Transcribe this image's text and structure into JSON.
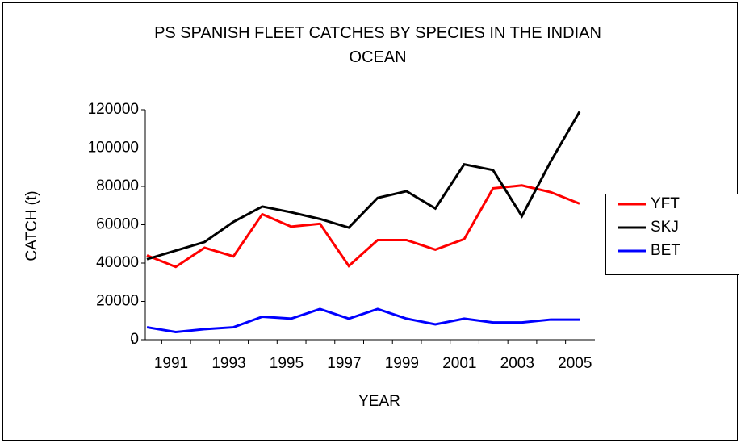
{
  "chart_data": {
    "type": "line",
    "title": "PS SPANISH FLEET CATCHES BY SPECIES IN THE INDIAN OCEAN",
    "x_label": "YEAR",
    "y_label": "CATCH (t)",
    "categories": [
      "1991",
      null,
      "1993",
      null,
      "1995",
      null,
      "1997",
      null,
      "1999",
      null,
      "2001",
      null,
      "2003",
      null,
      "2005",
      null
    ],
    "series": [
      {
        "name": "YFT",
        "color": "#ff0000",
        "values": [
          44000,
          38000,
          48000,
          43500,
          65500,
          59000,
          60500,
          38500,
          52000,
          52000,
          47000,
          52500,
          79000,
          80500,
          77000,
          71000
        ]
      },
      {
        "name": "SKJ",
        "color": "#000000",
        "values": [
          42000,
          46500,
          51000,
          61500,
          69500,
          66500,
          63000,
          58500,
          74000,
          77500,
          68500,
          91500,
          88500,
          64500,
          93000,
          119000
        ]
      },
      {
        "name": "BET",
        "color": "#0000ff",
        "values": [
          6500,
          4000,
          5500,
          6500,
          12000,
          11000,
          16000,
          11000,
          16000,
          11000,
          8000,
          11000,
          9000,
          9000,
          10500,
          10500
        ]
      }
    ],
    "ylim": [
      0,
      120000
    ],
    "yticks": [
      0,
      20000,
      40000,
      60000,
      80000,
      100000,
      120000
    ],
    "legend": "right"
  }
}
